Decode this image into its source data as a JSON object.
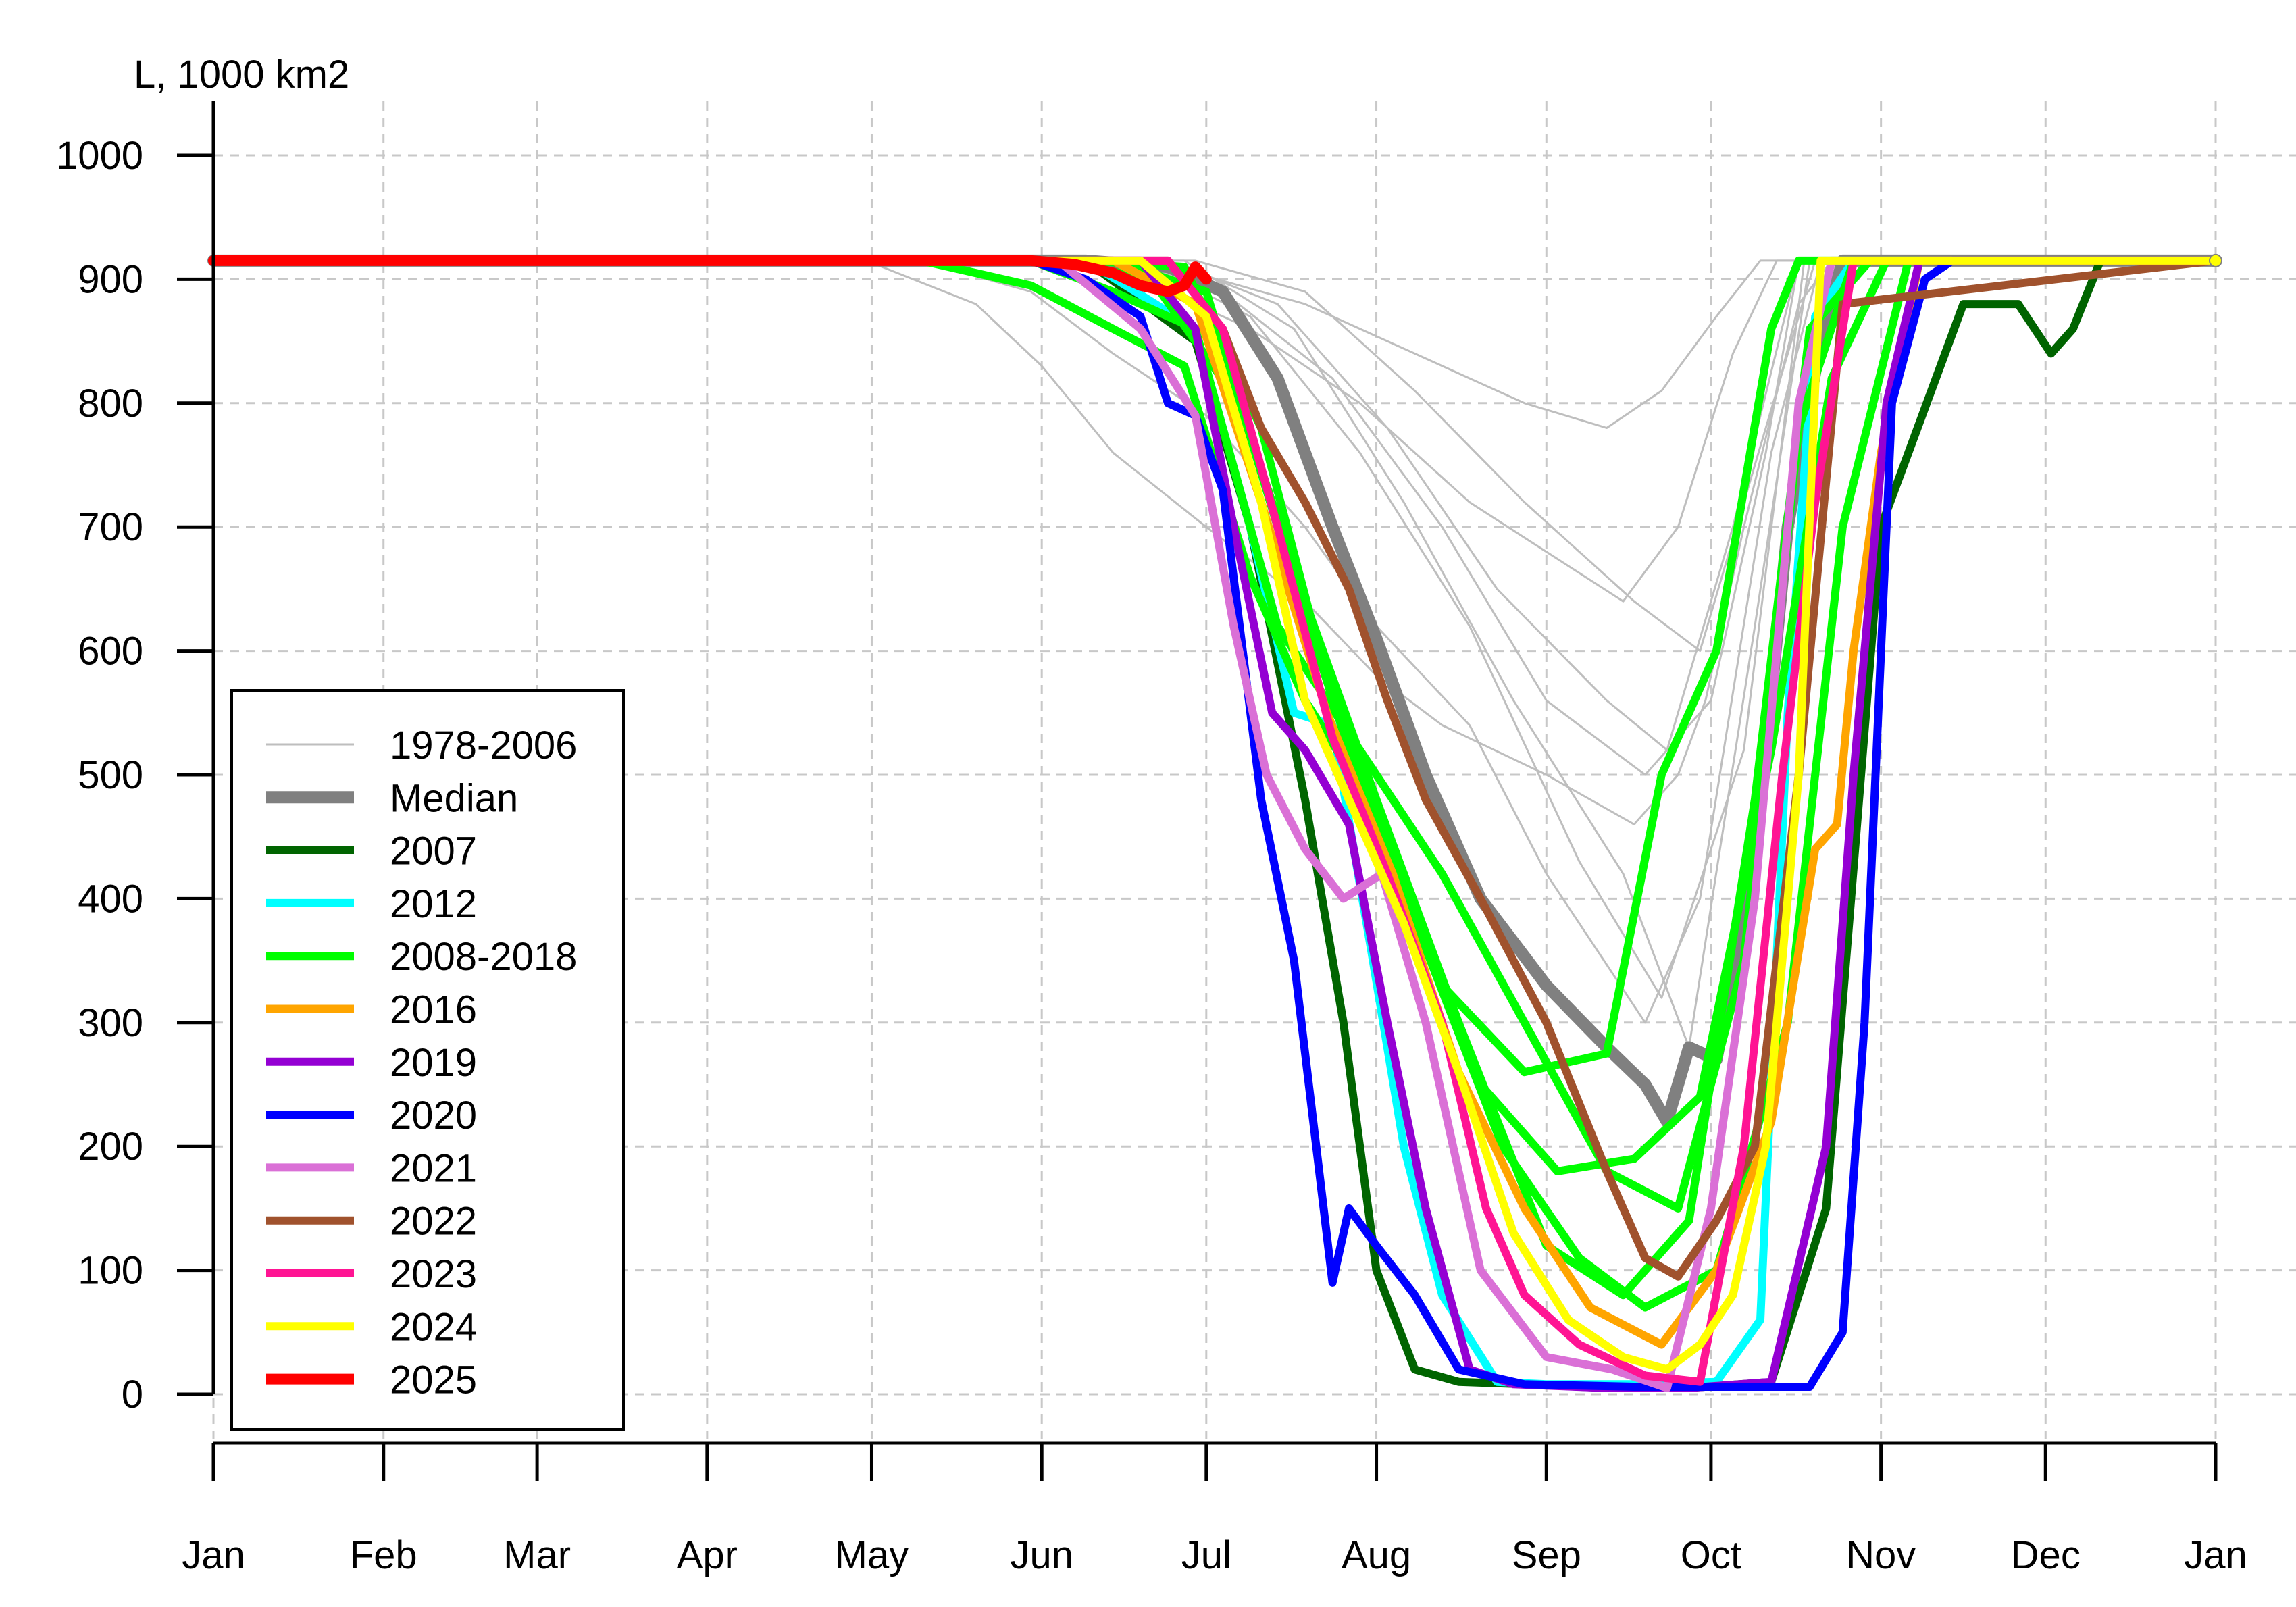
{
  "chart_data": {
    "type": "line",
    "ylabel": "L, 1000 km2",
    "xlabel": "",
    "title": "",
    "ylim": [
      0,
      1000
    ],
    "yticks": [
      0,
      100,
      200,
      300,
      400,
      500,
      600,
      700,
      800,
      900,
      1000
    ],
    "xticks": [
      "Jan",
      "Feb",
      "Mar",
      "Apr",
      "May",
      "Jun",
      "Jul",
      "Aug",
      "Sep",
      "Oct",
      "Nov",
      "Dec",
      "Jan"
    ],
    "xtick_days": [
      1,
      32,
      60,
      91,
      121,
      152,
      182,
      213,
      244,
      274,
      305,
      335,
      366
    ],
    "grid": true,
    "legend_position": "bottom-left",
    "colors": {
      "historic": "#bebebe",
      "median": "#808080",
      "y2007": "#006400",
      "y2012": "#00ffff",
      "y2008_2018": "#00ff00",
      "y2016": "#ffa500",
      "y2019": "#9400d3",
      "y2020": "#0000ff",
      "y2021": "#da70d6",
      "y2022": "#a0522d",
      "y2023": "#ff1493",
      "y2024": "#ffff00",
      "y2025": "#ff0000"
    },
    "legend": [
      {
        "label": "1978-2006",
        "color": "#bebebe",
        "width": 3
      },
      {
        "label": "Median",
        "color": "#808080",
        "width": 18
      },
      {
        "label": "2007",
        "color": "#006400",
        "width": 12
      },
      {
        "label": "2012",
        "color": "#00ffff",
        "width": 12
      },
      {
        "label": "2008-2018",
        "color": "#00ff00",
        "width": 12
      },
      {
        "label": "2016",
        "color": "#ffa500",
        "width": 12
      },
      {
        "label": "2019",
        "color": "#9400d3",
        "width": 12
      },
      {
        "label": "2020",
        "color": "#0000ff",
        "width": 12
      },
      {
        "label": "2021",
        "color": "#da70d6",
        "width": 12
      },
      {
        "label": "2022",
        "color": "#a0522d",
        "width": 12
      },
      {
        "label": "2023",
        "color": "#ff1493",
        "width": 12
      },
      {
        "label": "2024",
        "color": "#ffff00",
        "width": 12
      },
      {
        "label": "2025",
        "color": "#ff0000",
        "width": 16
      }
    ],
    "series": [
      {
        "group": "1978-2006",
        "color": "#bebebe",
        "width": 3,
        "x": [
          1,
          120,
          140,
          152,
          165,
          182,
          200,
          213,
          225,
          244,
          260,
          268,
          273,
          280,
          290,
          296,
          366
        ],
        "y": [
          915,
          915,
          880,
          830,
          760,
          700,
          640,
          580,
          540,
          500,
          460,
          500,
          560,
          700,
          880,
          915,
          915
        ]
      },
      {
        "group": "1978-2006",
        "color": "#bebebe",
        "width": 3,
        "x": [
          1,
          130,
          150,
          165,
          182,
          200,
          213,
          230,
          244,
          262,
          272,
          285,
          294,
          366
        ],
        "y": [
          915,
          915,
          890,
          840,
          790,
          700,
          620,
          540,
          420,
          300,
          400,
          760,
          915,
          915
        ]
      },
      {
        "group": "1978-2006",
        "color": "#bebebe",
        "width": 3,
        "x": [
          1,
          150,
          170,
          190,
          210,
          230,
          244,
          258,
          268,
          278,
          286,
          366
        ],
        "y": [
          915,
          915,
          900,
          860,
          800,
          720,
          680,
          640,
          700,
          840,
          915,
          915
        ]
      },
      {
        "group": "1978-2006",
        "color": "#bebebe",
        "width": 3,
        "x": [
          1,
          160,
          180,
          200,
          220,
          240,
          255,
          265,
          275,
          283,
          366
        ],
        "y": [
          915,
          915,
          905,
          880,
          840,
          800,
          780,
          810,
          870,
          915,
          915
        ]
      },
      {
        "group": "1978-2006",
        "color": "#bebebe",
        "width": 3,
        "x": [
          1,
          165,
          185,
          205,
          225,
          244,
          262,
          274,
          284,
          290,
          366
        ],
        "y": [
          915,
          915,
          890,
          820,
          700,
          560,
          500,
          560,
          760,
          915,
          915
        ]
      },
      {
        "group": "1978-2006",
        "color": "#bebebe",
        "width": 3,
        "x": [
          1,
          170,
          190,
          210,
          230,
          250,
          265,
          280,
          291,
          366
        ],
        "y": [
          915,
          915,
          870,
          760,
          620,
          430,
          320,
          520,
          915,
          915
        ]
      },
      {
        "group": "1978-2006",
        "color": "#bebebe",
        "width": 3,
        "x": [
          1,
          175,
          195,
          215,
          235,
          255,
          266,
          278,
          290,
          366
        ],
        "y": [
          915,
          915,
          880,
          780,
          650,
          560,
          520,
          700,
          915,
          915
        ]
      },
      {
        "group": "1978-2006",
        "color": "#bebebe",
        "width": 3,
        "x": [
          1,
          178,
          198,
          218,
          238,
          258,
          270,
          282,
          292,
          366
        ],
        "y": [
          915,
          915,
          860,
          720,
          560,
          420,
          280,
          620,
          915,
          915
        ]
      },
      {
        "group": "1978-2006",
        "color": "#bebebe",
        "width": 3,
        "x": [
          1,
          180,
          200,
          220,
          240,
          260,
          272,
          284,
          293,
          366
        ],
        "y": [
          915,
          915,
          890,
          810,
          720,
          640,
          600,
          780,
          915,
          915
        ]
      },
      {
        "group": "Median",
        "color": "#808080",
        "width": 18,
        "x": [
          1,
          160,
          175,
          185,
          195,
          205,
          213,
          222,
          232,
          244,
          255,
          262,
          266,
          270,
          275,
          282,
          288,
          294,
          298,
          366
        ],
        "y": [
          915,
          915,
          910,
          890,
          820,
          700,
          610,
          500,
          400,
          330,
          280,
          250,
          220,
          280,
          270,
          430,
          700,
          850,
          915,
          915
        ]
      },
      {
        "group": "2007",
        "color": "#006400",
        "width": 12,
        "x": [
          1,
          160,
          180,
          190,
          200,
          207,
          213,
          220,
          228,
          240,
          255,
          270,
          285,
          295,
          305,
          320,
          330,
          336,
          340,
          345,
          366
        ],
        "y": [
          915,
          915,
          850,
          700,
          480,
          300,
          100,
          20,
          10,
          8,
          5,
          5,
          10,
          150,
          700,
          880,
          880,
          840,
          860,
          915,
          915
        ]
      },
      {
        "group": "2012",
        "color": "#00ffff",
        "width": 12,
        "x": [
          1,
          160,
          180,
          190,
          198,
          205,
          212,
          218,
          225,
          235,
          244,
          260,
          275,
          283,
          288,
          293,
          300,
          366
        ],
        "y": [
          915,
          915,
          860,
          700,
          550,
          540,
          360,
          200,
          80,
          10,
          8,
          8,
          10,
          60,
          550,
          870,
          915,
          915
        ]
      },
      {
        "group": "2008-2018",
        "color": "#00ff00",
        "width": 12,
        "x": [
          1,
          130,
          150,
          165,
          178,
          190,
          200,
          213,
          225,
          240,
          255,
          265,
          275,
          285,
          290,
          366
        ],
        "y": [
          915,
          915,
          895,
          860,
          830,
          660,
          560,
          470,
          330,
          260,
          275,
          500,
          600,
          860,
          915,
          915
        ]
      },
      {
        "group": "2008-2018",
        "color": "#00ff00",
        "width": 12,
        "x": [
          1,
          150,
          165,
          180,
          195,
          210,
          225,
          240,
          255,
          268,
          280,
          290,
          300,
          366
        ],
        "y": [
          915,
          915,
          890,
          860,
          620,
          520,
          420,
          300,
          180,
          150,
          350,
          780,
          915,
          915
        ]
      },
      {
        "group": "2008-2018",
        "color": "#00ff00",
        "width": 12,
        "x": [
          1,
          155,
          172,
          188,
          200,
          213,
          228,
          244,
          258,
          270,
          282,
          292,
          303,
          366
        ],
        "y": [
          915,
          915,
          900,
          800,
          640,
          480,
          300,
          120,
          80,
          140,
          480,
          860,
          915,
          915
        ]
      },
      {
        "group": "2008-2018",
        "color": "#00ff00",
        "width": 12,
        "x": [
          1,
          160,
          178,
          192,
          205,
          218,
          232,
          246,
          260,
          272,
          285,
          296,
          306,
          366
        ],
        "y": [
          915,
          915,
          910,
          780,
          560,
          420,
          250,
          180,
          190,
          240,
          520,
          820,
          915,
          915
        ]
      },
      {
        "group": "2008-2018",
        "color": "#00ff00",
        "width": 12,
        "x": [
          1,
          165,
          182,
          195,
          208,
          222,
          236,
          250,
          262,
          275,
          288,
          298,
          310,
          366
        ],
        "y": [
          915,
          915,
          890,
          700,
          520,
          360,
          200,
          110,
          70,
          100,
          300,
          700,
          915,
          915
        ]
      },
      {
        "group": "2016",
        "color": "#ffa500",
        "width": 12,
        "x": [
          1,
          165,
          180,
          192,
          204,
          216,
          228,
          240,
          252,
          265,
          275,
          285,
          293,
          297,
          300,
          305,
          312,
          318,
          366
        ],
        "y": [
          915,
          915,
          880,
          720,
          550,
          420,
          260,
          150,
          70,
          40,
          100,
          220,
          440,
          460,
          600,
          760,
          915,
          915,
          915
        ]
      },
      {
        "group": "2019",
        "color": "#9400d3",
        "width": 12,
        "x": [
          1,
          170,
          180,
          187,
          194,
          200,
          208,
          215,
          222,
          230,
          238,
          255,
          270,
          285,
          295,
          300,
          306,
          312,
          366
        ],
        "y": [
          915,
          915,
          860,
          700,
          550,
          520,
          460,
          300,
          150,
          20,
          8,
          5,
          5,
          10,
          200,
          500,
          800,
          915,
          915
        ]
      },
      {
        "group": "2020",
        "color": "#0000ff",
        "width": 12,
        "x": [
          1,
          150,
          160,
          170,
          175,
          180,
          185,
          192,
          198,
          205,
          208,
          213,
          220,
          228,
          240,
          260,
          280,
          292,
          298,
          302,
          307,
          313,
          318,
          366
        ],
        "y": [
          915,
          915,
          900,
          870,
          800,
          790,
          730,
          480,
          350,
          90,
          150,
          120,
          80,
          20,
          8,
          6,
          6,
          6,
          50,
          300,
          800,
          900,
          915,
          915
        ]
      },
      {
        "group": "2021",
        "color": "#da70d6",
        "width": 12,
        "x": [
          1,
          155,
          170,
          180,
          187,
          193,
          200,
          207,
          214,
          222,
          232,
          244,
          256,
          266,
          274,
          282,
          290,
          296,
          366
        ],
        "y": [
          915,
          915,
          860,
          790,
          620,
          500,
          440,
          400,
          420,
          300,
          100,
          30,
          20,
          5,
          150,
          400,
          800,
          915,
          915
        ]
      },
      {
        "group": "2022",
        "color": "#a0522d",
        "width": 12,
        "x": [
          1,
          175,
          185,
          192,
          200,
          208,
          215,
          222,
          232,
          244,
          255,
          262,
          268,
          275,
          282,
          290,
          298,
          366
        ],
        "y": [
          915,
          915,
          860,
          780,
          720,
          650,
          560,
          480,
          400,
          300,
          180,
          110,
          95,
          140,
          200,
          500,
          880,
          915
        ]
      },
      {
        "group": "2023",
        "color": "#ff1493",
        "width": 12,
        "x": [
          1,
          175,
          185,
          195,
          205,
          215,
          225,
          233,
          240,
          250,
          262,
          272,
          280,
          287,
          293,
          300,
          366
        ],
        "y": [
          915,
          915,
          860,
          700,
          530,
          420,
          300,
          150,
          80,
          40,
          15,
          10,
          200,
          500,
          720,
          915,
          915
        ]
      },
      {
        "group": "2024",
        "color": "#ffff00",
        "width": 12,
        "x": [
          1,
          170,
          182,
          192,
          200,
          208,
          218,
          228,
          238,
          248,
          258,
          266,
          272,
          278,
          284,
          290,
          294,
          366
        ],
        "y": [
          915,
          915,
          870,
          720,
          560,
          480,
          380,
          260,
          130,
          60,
          30,
          20,
          40,
          80,
          200,
          500,
          915,
          915
        ]
      },
      {
        "group": "2025",
        "color": "#ff0000",
        "width": 16,
        "x": [
          1,
          150,
          158,
          165,
          170,
          175,
          178,
          180,
          182
        ],
        "y": [
          915,
          915,
          912,
          905,
          895,
          890,
          895,
          910,
          900
        ]
      }
    ]
  }
}
